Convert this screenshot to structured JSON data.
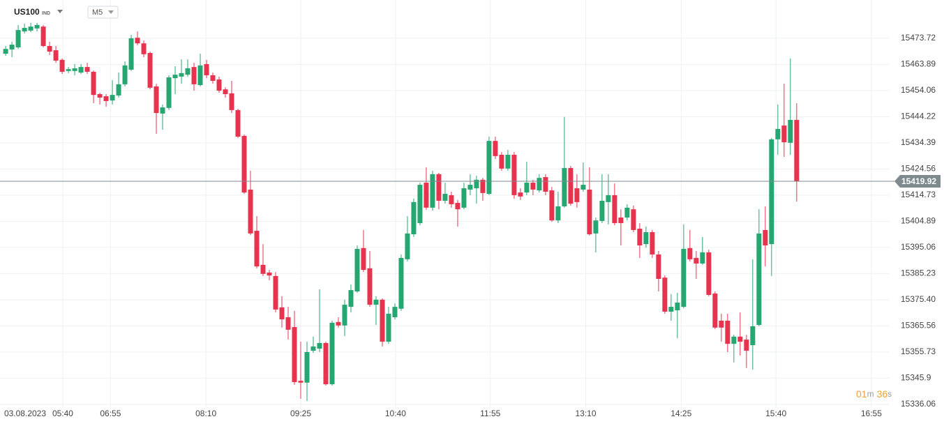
{
  "header": {
    "symbol": "US100",
    "market": "IND",
    "timeframe": "M5"
  },
  "timer": {
    "minutes": "01",
    "minutes_unit": "m",
    "seconds": "36",
    "seconds_unit": "s"
  },
  "chart_data": {
    "type": "candlestick",
    "up_color": "#26a671",
    "down_color": "#e8334f",
    "open": [
      15467.9,
      15469.5,
      15470.3,
      15476.3,
      15476.6,
      15477.4,
      15478.1,
      15470.8,
      15469.2,
      15465.6,
      15461.4,
      15461.4,
      15460.8,
      15462.9,
      15461.1,
      15452.7,
      15451.9,
      15450.3,
      15452.2,
      15456.4,
      15461.9,
      15473.9,
      15471.8,
      15468.2,
      15455.6,
      15445.4,
      15447.5,
      15458.7,
      15459.3,
      15460.0,
      15462.9,
      15456.1,
      15464.0,
      15459.8,
      15458.2,
      15454.5,
      15453.0,
      15446.7,
      15437.0,
      15416.8,
      15401.3,
      15388.5,
      15385.6,
      15384.3,
      15372.5,
      15368.8,
      15365.1,
      15344.9,
      15344.2,
      15356.2,
      15357.0,
      15359.1,
      15343.6,
      15367.0,
      15365.7,
      15372.7,
      15378.5,
      15394.8,
      15387.2,
      15373.5,
      15375.4,
      15359.6,
      15368.8,
      15372.0,
      15390.6,
      15400.0,
      15404.2,
      15419.4,
      15410.0,
      15422.6,
      15412.6,
      15414.7,
      15411.8,
      15410.0,
      15416.8,
      15417.3,
      15420.5,
      15415.2,
      15435.1,
      15429.9,
      15424.7,
      15429.9,
      15415.7,
      15415.7,
      15419.4,
      15416.5,
      15421.5,
      15416.5,
      15405.2,
      15410.5,
      15424.9,
      15417.3,
      15416.8,
      15416.8,
      15400.3,
      15405.0,
      15412.1,
      15414.7,
      15406.3,
      15406.3,
      15409.4,
      15402.1,
      15396.3,
      15400.8,
      15392.4,
      15383.7,
      15370.9,
      15371.4,
      15372.7,
      15394.8,
      15391.1,
      15389.0,
      15393.2,
      15377.7,
      15367.5,
      15367.5,
      15358.8,
      15361.5,
      15360.4,
      15358.3,
      15365.9,
      15401.6,
      15396.3,
      15435.7,
      15440.9,
      15434.4,
      15443.0
    ],
    "high": [
      15470.8,
      15472.4,
      15478.7,
      15479.2,
      15479.5,
      15479.5,
      15478.7,
      15472.4,
      15470.8,
      15466.1,
      15462.9,
      15464.0,
      15464.0,
      15464.5,
      15461.6,
      15453.2,
      15452.7,
      15458.0,
      15460.8,
      15465.0,
      15475.0,
      15476.3,
      15472.9,
      15468.7,
      15456.6,
      15448.8,
      15459.8,
      15463.2,
      15465.8,
      15465.8,
      15464.5,
      15467.9,
      15465.6,
      15460.8,
      15459.3,
      15455.3,
      15457.7,
      15447.2,
      15437.5,
      15423.9,
      15406.8,
      15396.3,
      15386.6,
      15385.8,
      15376.7,
      15372.7,
      15371.2,
      15359.6,
      15359.6,
      15361.5,
      15379.3,
      15359.6,
      15367.5,
      15368.8,
      15375.4,
      15381.1,
      15395.8,
      15401.6,
      15393.7,
      15376.7,
      15375.9,
      15372.7,
      15374.0,
      15392.4,
      15406.8,
      15413.4,
      15419.4,
      15425.2,
      15423.9,
      15423.1,
      15419.4,
      15416.0,
      15412.9,
      15419.4,
      15422.6,
      15422.0,
      15421.2,
      15436.7,
      15436.7,
      15430.9,
      15431.7,
      15430.9,
      15417.3,
      15427.3,
      15420.5,
      15422.6,
      15422.6,
      15417.8,
      15416.0,
      15444.1,
      15425.7,
      15422.6,
      15427.0,
      15425.2,
      15406.3,
      15422.6,
      15422.6,
      15419.1,
      15409.4,
      15411.3,
      15410.8,
      15404.2,
      15402.9,
      15401.6,
      15393.7,
      15384.5,
      15377.5,
      15378.0,
      15403.7,
      15401.6,
      15393.7,
      15399.0,
      15394.2,
      15378.5,
      15370.1,
      15370.1,
      15362.2,
      15370.6,
      15362.2,
      15390.6,
      15409.4,
      15410.5,
      15436.2,
      15448.8,
      15456.6,
      15466.1,
      15449.3
    ],
    "low": [
      15467.1,
      15466.6,
      15469.7,
      15475.5,
      15476.0,
      15476.3,
      15470.3,
      15467.4,
      15464.5,
      15460.3,
      15460.6,
      15459.8,
      15460.3,
      15460.3,
      15449.3,
      15448.8,
      15448.0,
      15448.8,
      15451.4,
      15455.6,
      15461.4,
      15471.1,
      15466.6,
      15454.5,
      15437.8,
      15439.3,
      15446.7,
      15452.7,
      15456.6,
      15459.3,
      15454.0,
      15455.6,
      15458.7,
      15456.6,
      15453.2,
      15451.4,
      15445.6,
      15436.2,
      15415.2,
      15399.7,
      15387.2,
      15384.3,
      15382.7,
      15370.6,
      15364.9,
      15360.4,
      15343.4,
      15338.1,
      15337.3,
      15355.4,
      15355.7,
      15343.1,
      15343.1,
      15364.9,
      15361.7,
      15370.6,
      15378.0,
      15385.8,
      15372.7,
      15365.9,
      15357.8,
      15358.8,
      15368.0,
      15371.2,
      15389.8,
      15399.0,
      15403.4,
      15409.2,
      15408.9,
      15409.4,
      15411.5,
      15410.0,
      15402.9,
      15409.4,
      15414.7,
      15411.5,
      15412.6,
      15414.7,
      15428.3,
      15423.9,
      15423.9,
      15413.4,
      15412.9,
      15414.7,
      15414.7,
      15415.7,
      15414.7,
      15404.7,
      15404.2,
      15410.0,
      15410.8,
      15410.0,
      15416.0,
      15399.5,
      15393.2,
      15404.2,
      15403.7,
      15403.4,
      15395.8,
      15405.2,
      15400.8,
      15391.1,
      15395.0,
      15391.1,
      15378.5,
      15370.1,
      15367.5,
      15360.9,
      15372.2,
      15389.8,
      15383.2,
      15388.5,
      15376.7,
      15364.3,
      15359.6,
      15355.7,
      15351.8,
      15354.4,
      15349.7,
      15349.1,
      15365.4,
      15387.9,
      15384.3,
      15429.9,
      15429.1,
      15429.9,
      15412.3
    ],
    "close": [
      15469.7,
      15471.3,
      15476.8,
      15477.6,
      15478.1,
      15478.7,
      15470.8,
      15468.7,
      15465.3,
      15461.1,
      15462.1,
      15462.4,
      15462.9,
      15461.1,
      15452.4,
      15451.4,
      15450.1,
      15452.4,
      15456.4,
      15463.5,
      15473.7,
      15471.8,
      15467.7,
      15455.1,
      15445.6,
      15447.7,
      15459.0,
      15460.0,
      15460.6,
      15462.4,
      15456.4,
      15463.5,
      15459.8,
      15457.7,
      15454.0,
      15452.7,
      15446.7,
      15436.7,
      15415.7,
      15400.3,
      15387.9,
      15385.1,
      15384.5,
      15371.7,
      15368.0,
      15364.1,
      15344.4,
      15344.2,
      15355.7,
      15357.8,
      15359.1,
      15343.6,
      15366.7,
      15365.7,
      15373.5,
      15379.0,
      15394.5,
      15386.6,
      15373.5,
      15375.4,
      15359.6,
      15370.1,
      15372.7,
      15391.1,
      15400.3,
      15412.1,
      15418.6,
      15410.0,
      15422.6,
      15412.6,
      15415.2,
      15411.3,
      15409.4,
      15417.3,
      15418.6,
      15420.5,
      15415.5,
      15435.1,
      15429.4,
      15424.7,
      15429.9,
      15414.7,
      15414.2,
      15419.4,
      15416.8,
      15421.2,
      15416.0,
      15405.2,
      15410.5,
      15424.9,
      15411.5,
      15412.1,
      15418.6,
      15400.0,
      15405.2,
      15412.6,
      15414.7,
      15404.2,
      15404.2,
      15410.0,
      15401.6,
      15395.8,
      15400.8,
      15392.4,
      15383.2,
      15370.9,
      15372.7,
      15374.3,
      15394.5,
      15390.6,
      15389.0,
      15393.2,
      15377.2,
      15364.9,
      15364.9,
      15358.8,
      15361.5,
      15359.6,
      15356.2,
      15365.4,
      15400.3,
      15395.8,
      15435.7,
      15439.6,
      15434.6,
      15443.0,
      15419.92
    ],
    "ylim": [
      15333.4,
      15488.1
    ],
    "yticks": [
      15473.72,
      15463.89,
      15454.06,
      15444.22,
      15434.39,
      15424.56,
      15414.73,
      15404.89,
      15395.06,
      15385.23,
      {
        "value": 15375.4,
        "label": "15375.40"
      },
      15365.56,
      15355.73,
      15345.9,
      15336.06
    ],
    "xlim": [
      -0.9,
      140.8
    ],
    "xticks": [
      {
        "value": 3.1,
        "label": "03.08.2023"
      },
      {
        "value": 9.1,
        "label": "05:40"
      },
      {
        "value": 16.7,
        "label": "06:55"
      },
      {
        "value": 31.9,
        "label": "08:10"
      },
      {
        "value": 47.0,
        "label": "09:25"
      },
      {
        "value": 62.1,
        "label": "10:40"
      },
      {
        "value": 77.2,
        "label": "11:55"
      },
      {
        "value": 92.4,
        "label": "13:10"
      },
      {
        "value": 107.6,
        "label": "14:25"
      },
      {
        "value": 122.7,
        "label": "15:40"
      },
      {
        "value": 137.9,
        "label": "16:55"
      }
    ],
    "grid": true,
    "current_price": 15419.92,
    "current_price_color": "#7f8a8f"
  }
}
